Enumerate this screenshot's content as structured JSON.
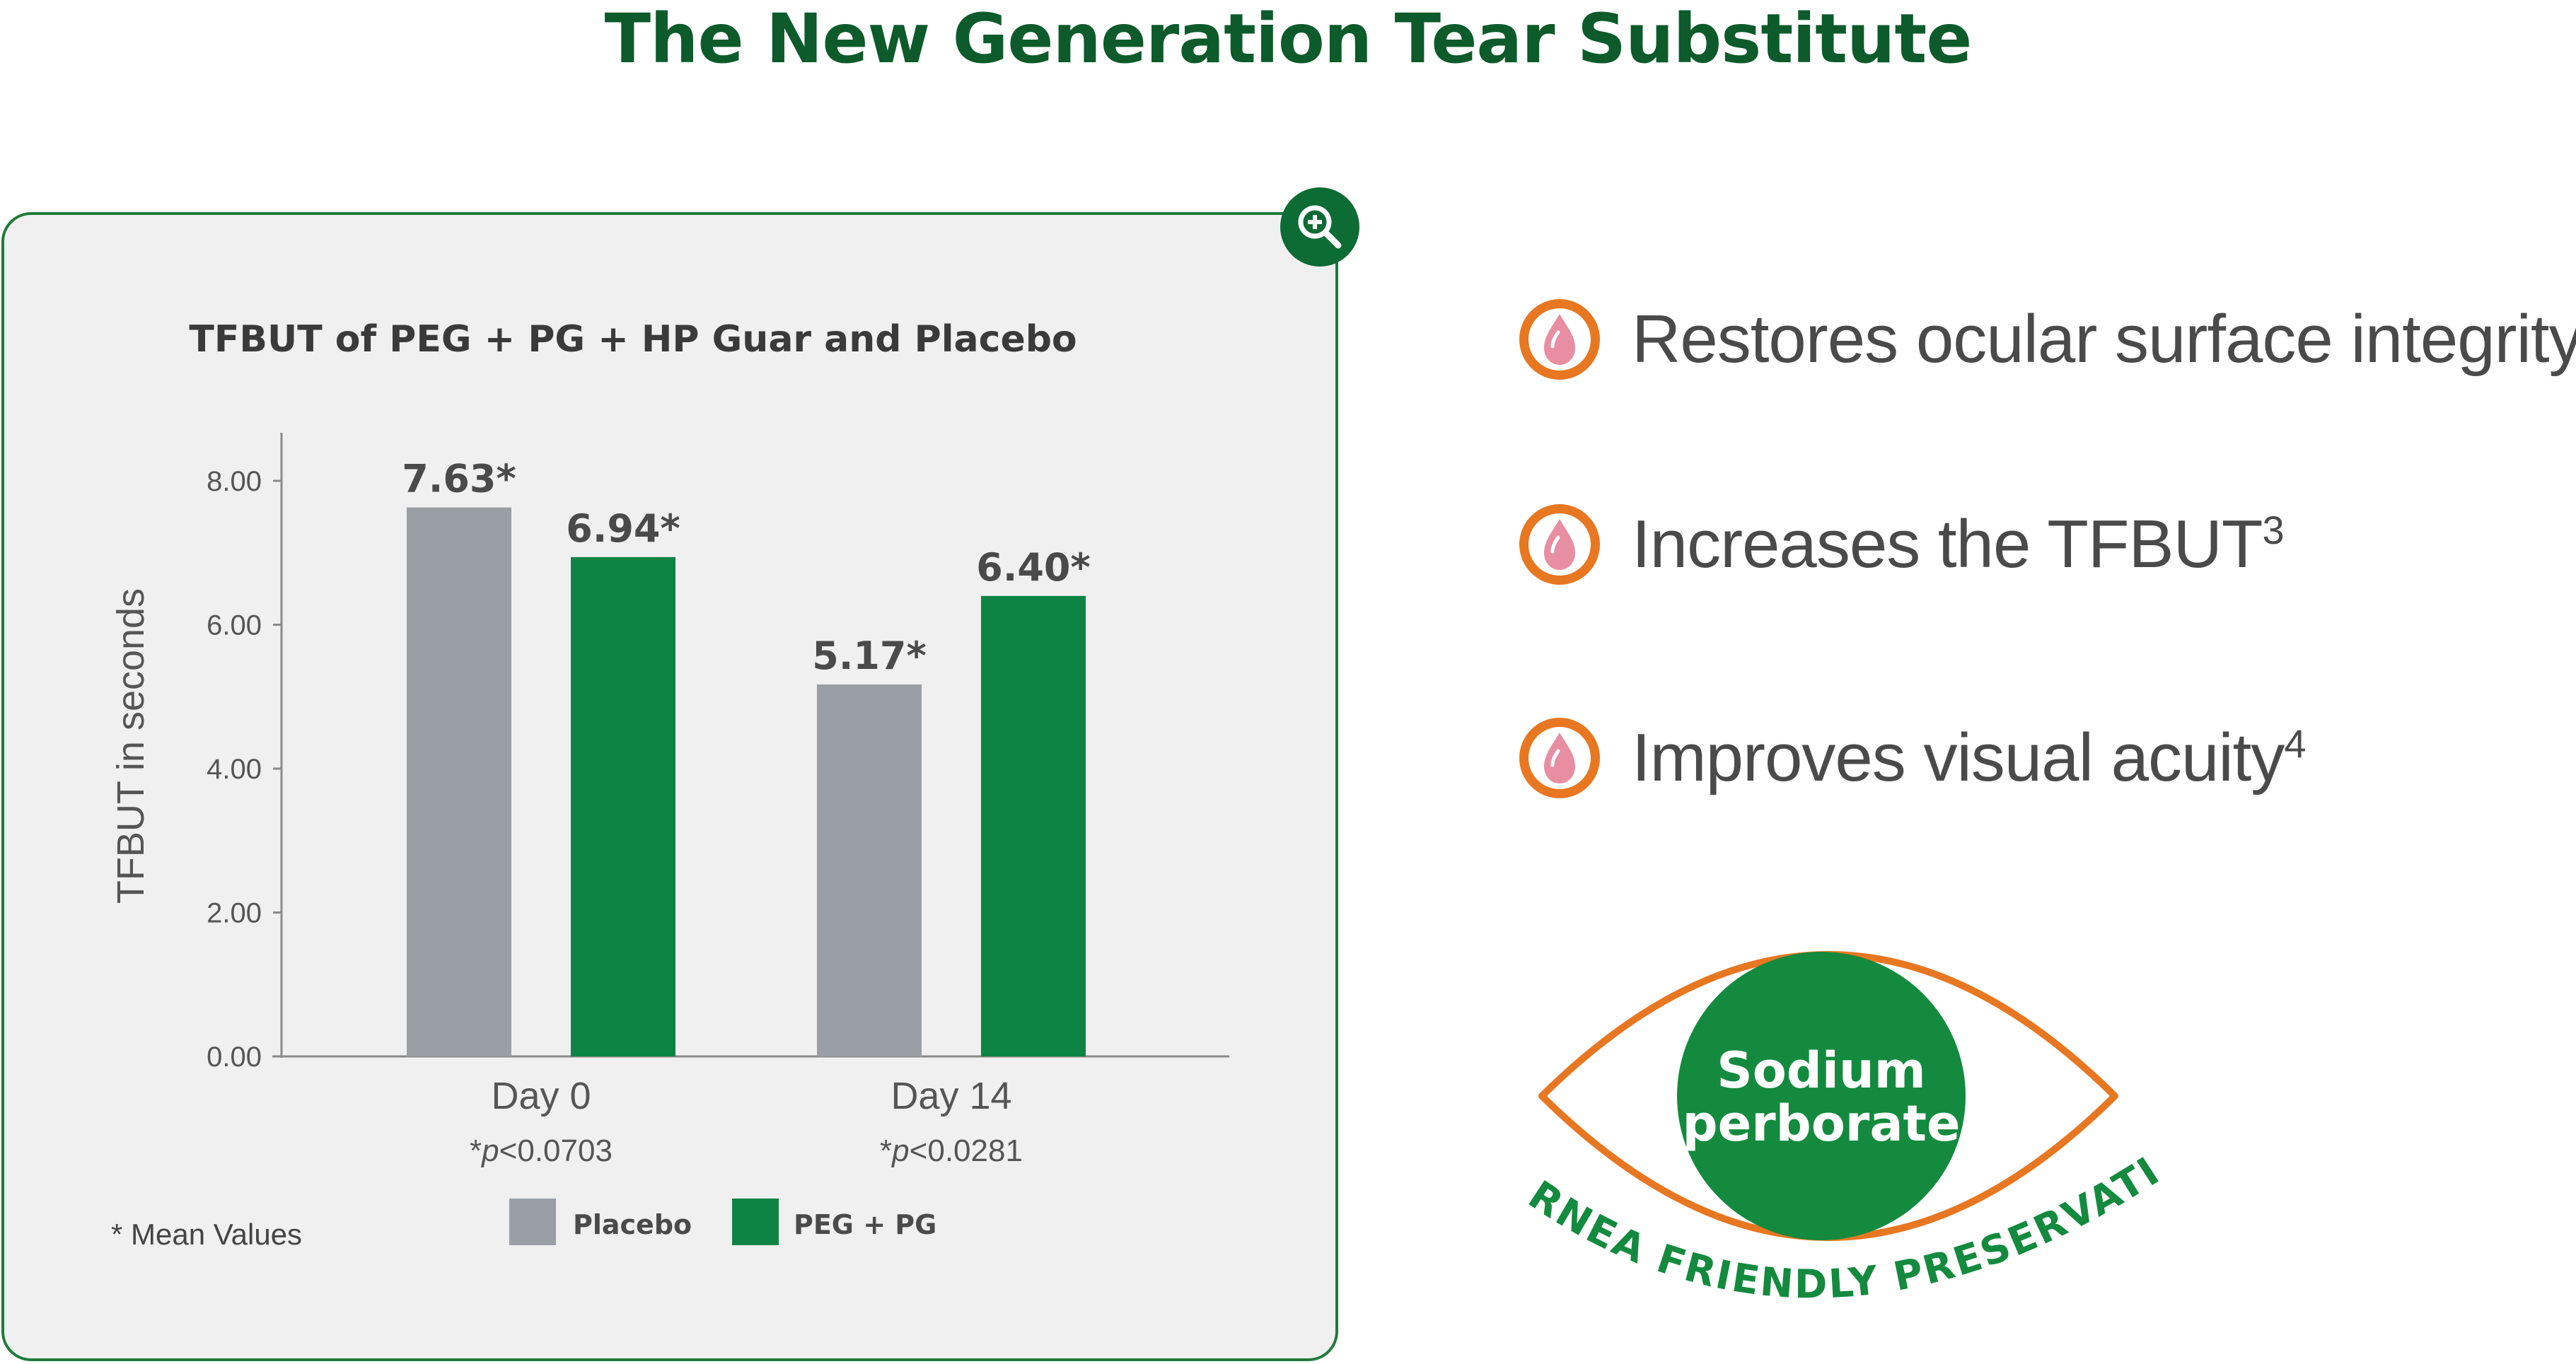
{
  "page": {
    "title": "The New Generation Tear Substitute"
  },
  "chart_data": {
    "type": "bar",
    "title": "TFBUT of PEG + PG + HP Guar and Placebo",
    "xlabel": "",
    "ylabel": "TFBUT in seconds",
    "ylim": [
      0,
      8
    ],
    "yticks": [
      "0.00",
      "2.00",
      "4.00",
      "6.00",
      "8.00"
    ],
    "categories": [
      "Day 0",
      "Day 14"
    ],
    "category_notes": [
      "*p<0.0703",
      "*p<0.0281"
    ],
    "series": [
      {
        "name": "Placebo",
        "values": [
          7.63,
          5.17
        ],
        "labels": [
          "7.63*",
          "5.17*"
        ],
        "color": "#9a9ea5"
      },
      {
        "name": "PEG + PG",
        "values": [
          6.94,
          6.4
        ],
        "labels": [
          "6.94*",
          "6.40*"
        ],
        "color": "#0d8443"
      }
    ],
    "footnote": "* Mean Values",
    "legend": "bottom",
    "grid": false
  },
  "features": [
    {
      "text": "Restores ocular surface integrity",
      "sup": "",
      "icon": "drop-icon"
    },
    {
      "text": "Increases the TFBUT",
      "sup": "3",
      "icon": "drop-icon"
    },
    {
      "text": "Improves visual acuity",
      "sup": "4",
      "icon": "drop-icon"
    }
  ],
  "badge": {
    "line1": "Sodium",
    "line2": "perborate",
    "arc_text": "CORNEA FRIENDLY PRESERVATIVE"
  },
  "colors": {
    "brand_green": "#0d6b34",
    "accent_orange": "#e87722",
    "bar_gray": "#9a9ea5",
    "bar_green": "#0d8443"
  }
}
